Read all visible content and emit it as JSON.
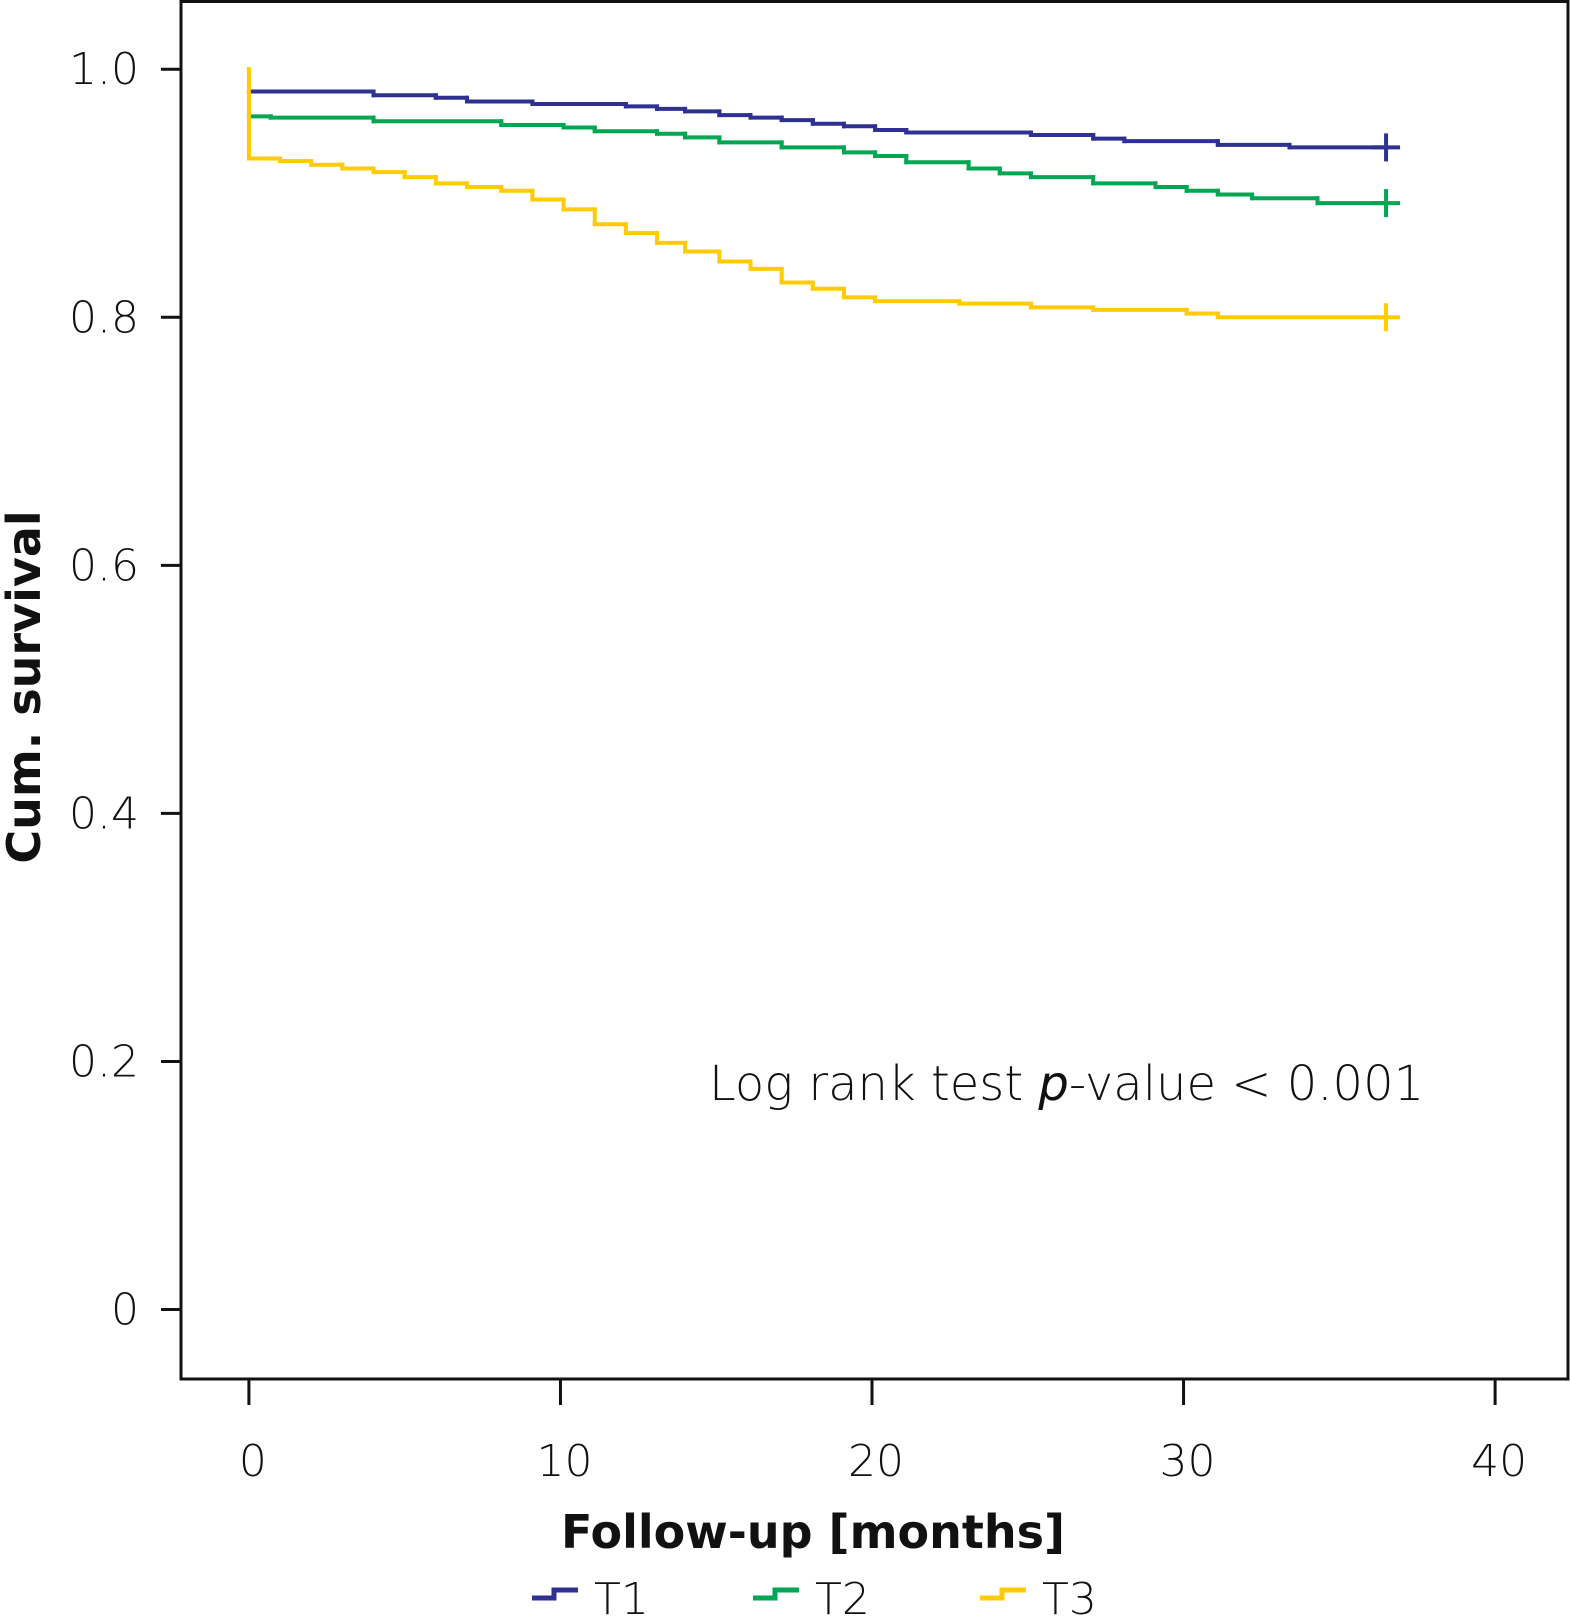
{
  "chart_data": {
    "type": "step",
    "x_label": "Follow-up [months]",
    "y_label": "Cum. survival",
    "annotation": {
      "prefix": "Log rank test ",
      "italic": "p",
      "suffix": "-value < 0.001"
    },
    "xlim": [
      -2.18,
      42.34
    ],
    "ylim": [
      -0.056,
      1.055
    ],
    "xticks": [
      0,
      10,
      20,
      30,
      40
    ],
    "yticks": [
      0,
      0.2,
      0.4,
      0.6,
      0.8,
      {
        "value": 1,
        "label": "1.0"
      }
    ],
    "legend": "bottom",
    "censor_marks": true,
    "series": [
      {
        "name": "T1",
        "color": "#2e3192",
        "x": [
          0,
          4.0,
          6.0,
          7.0,
          9.1,
          12.1,
          13.1,
          14.0,
          15.1,
          16.1,
          17.1,
          18.1,
          19.1,
          20.1,
          21.1,
          25.1,
          27.1,
          28.1,
          31.1,
          33.4,
          36.5
        ],
        "values": [
          0.982,
          0.979,
          0.977,
          0.974,
          0.972,
          0.97,
          0.968,
          0.966,
          0.963,
          0.961,
          0.959,
          0.956,
          0.954,
          0.951,
          0.949,
          0.947,
          0.944,
          0.942,
          0.939,
          0.937,
          0.937
        ]
      },
      {
        "name": "T2",
        "color": "#00a651",
        "x": [
          0,
          0.7,
          4.0,
          8.1,
          10.1,
          11.1,
          13.1,
          14.0,
          15.1,
          17.1,
          19.1,
          20.1,
          21.1,
          23.1,
          24.1,
          25.1,
          27.1,
          29.1,
          30.1,
          31.1,
          32.2,
          34.3,
          36.5
        ],
        "values": [
          0.962,
          0.961,
          0.958,
          0.955,
          0.953,
          0.95,
          0.948,
          0.945,
          0.941,
          0.937,
          0.933,
          0.93,
          0.925,
          0.92,
          0.916,
          0.913,
          0.908,
          0.905,
          0.902,
          0.899,
          0.896,
          0.892,
          0.892
        ]
      },
      {
        "name": "T3",
        "color": "#ffcb05",
        "x": [
          0,
          0,
          1.0,
          2.0,
          3.0,
          4.0,
          5.0,
          6.0,
          7.0,
          8.1,
          9.1,
          10.1,
          11.1,
          12.1,
          13.1,
          14.0,
          15.1,
          16.1,
          17.1,
          18.1,
          19.1,
          20.1,
          22.8,
          25.1,
          27.1,
          30.1,
          31.1,
          36.5
        ],
        "values": [
          1,
          0.928,
          0.926,
          0.923,
          0.92,
          0.917,
          0.913,
          0.908,
          0.905,
          0.902,
          0.895,
          0.887,
          0.875,
          0.868,
          0.86,
          0.853,
          0.845,
          0.839,
          0.828,
          0.823,
          0.816,
          0.813,
          0.811,
          0.808,
          0.806,
          0.803,
          0.8,
          0.8
        ]
      }
    ]
  }
}
